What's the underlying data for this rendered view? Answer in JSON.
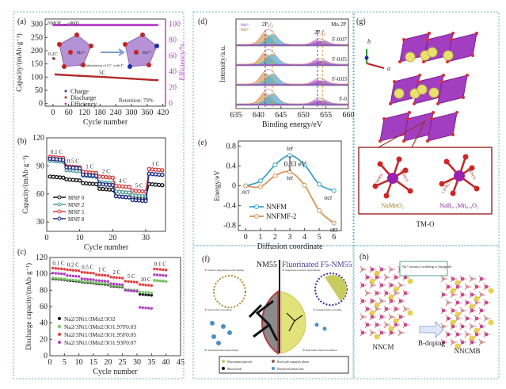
{
  "panel_labels": {
    "a": "(a)",
    "b": "(b)",
    "c": "(c)",
    "d": "(d)",
    "e": "(e)",
    "f": "(f)",
    "g": "(g)",
    "h": "(h)"
  },
  "colors": {
    "border": "#6fb3c4",
    "charge": "#2a3b8f",
    "discharge": "#b22a2a",
    "efficiency": "#b845c8",
    "nnfm": "#3aa3cc",
    "nnfmf": "#d8935a",
    "mn3": "#7a3fc8",
    "mn4": "#d8a050"
  },
  "chart_data": [
    {
      "id": "a",
      "type": "line",
      "xlabel": "Cycle number",
      "ylabel": "Capacity/(mAh·g⁻¹)",
      "y2label": "Efficiency/%",
      "xlim": [
        -30,
        430
      ],
      "ylim": [
        -10,
        320
      ],
      "y2lim": [
        0,
        100
      ],
      "xticks": [
        0,
        60,
        120,
        180,
        240,
        300,
        360,
        420
      ],
      "yticks": [
        0,
        50,
        100,
        150,
        200,
        250,
        300
      ],
      "y2ticks": [
        0,
        20,
        40,
        60,
        80,
        100
      ],
      "series": [
        {
          "name": "Charge",
          "x": [
            1,
            5,
            10,
            100,
            200,
            300,
            400
          ],
          "y": [
            172,
            170,
            111,
            106,
            101,
            95,
            89
          ]
        },
        {
          "name": "Discharge",
          "x": [
            1,
            5,
            10,
            100,
            200,
            300,
            400
          ],
          "y": [
            170,
            168,
            110,
            105,
            100,
            94,
            88
          ]
        },
        {
          "name": "Efficiency",
          "axis": "right",
          "x": [
            1,
            100,
            200,
            300,
            400
          ],
          "y": [
            99,
            99,
            99,
            99,
            99
          ]
        }
      ],
      "annotations": {
        "sample": "NMOF₀.₀₅–9005",
        "rate1": "0.2C",
        "rate2": "5C",
        "retention": "Retention: 79%",
        "substitution": "The substitution of O²⁻ with F⁻",
        "mn": "Mn⁴⁺",
        "o": "O²⁻",
        "f": "F⁻"
      }
    },
    {
      "id": "b",
      "type": "line",
      "xlabel": "Cycle number",
      "ylabel": "Capacity/(mAh·g⁻¹)",
      "xlim": [
        0,
        36
      ],
      "ylim": [
        20,
        120
      ],
      "xticks": [
        0,
        10,
        20,
        30
      ],
      "yticks": [
        30,
        60,
        90,
        120
      ],
      "rates": [
        "0.1 C",
        "0.5 C",
        "1 C",
        "2 C",
        "4 C",
        "5 C",
        "1 C"
      ],
      "cycles_per_rate": 5,
      "series": [
        {
          "name": "MNF 0",
          "color": "#111111",
          "values": [
            78,
            75,
            71,
            65,
            57,
            55,
            70
          ]
        },
        {
          "name": "MNF 2",
          "color": "#4d9a94",
          "values": [
            95,
            85,
            79,
            72,
            62,
            58,
            81
          ]
        },
        {
          "name": "MNF 5",
          "color": "#d23a3a",
          "values": [
            99,
            89,
            83,
            78,
            68,
            63,
            86
          ]
        },
        {
          "name": "MNF 8",
          "color": "#1f2a8a",
          "values": [
            97,
            88,
            80,
            70,
            57,
            53,
            81
          ]
        }
      ],
      "legend": "bottom-left"
    },
    {
      "id": "c",
      "type": "scatter",
      "xlabel": "Cycle number",
      "ylabel": "Discharge capacity/(mAh·g⁻¹)",
      "xlim": [
        0,
        45
      ],
      "ylim": [
        0,
        120
      ],
      "xticks": [
        0,
        5,
        10,
        15,
        20,
        25,
        30,
        35,
        40,
        45
      ],
      "yticks": [
        0,
        20,
        40,
        60,
        80,
        100,
        120
      ],
      "rates": [
        "0.1 C",
        "0.2 C",
        "0.5 C",
        "1 C",
        "2 C",
        "5 C",
        "10 C",
        "0.1 C"
      ],
      "cycles_per_rate": 5,
      "series": [
        {
          "name": "Na2/3Ni1/3Mn2/3O2",
          "color": "#111111",
          "values": [
            94,
            92,
            90,
            88,
            85,
            80,
            75,
            92
          ]
        },
        {
          "name": "Na2/3Ni1/3Mn2/3O1.97F0.03",
          "color": "#7bc66a",
          "values": [
            95,
            93,
            91,
            89,
            86,
            81,
            78,
            92
          ]
        },
        {
          "name": "Na2/3Ni1/3Mn2/3O1.95F0.05",
          "color": "#e04040",
          "values": [
            107,
            105,
            102,
            99,
            96,
            91,
            87,
            106
          ]
        },
        {
          "name": "Na2/3Ni1/3Mn2/3O1.93F0.07",
          "color": "#b040c0",
          "values": [
            101,
            98,
            94,
            92,
            88,
            80,
            59,
            99
          ]
        }
      ],
      "legend": "bottom-left"
    },
    {
      "id": "d",
      "type": "line",
      "title": "Mn 2P",
      "xlabel": "Binding energy/eV",
      "ylabel": "Intensity/a.u.",
      "xlim": [
        635,
        660
      ],
      "xticks": [
        635,
        640,
        645,
        650,
        655,
        660
      ],
      "samples": [
        "F-0",
        "F-0.03",
        "F-0.05",
        "F-0.07"
      ],
      "peaks": {
        "Mn³⁺": [
          641.5,
          653.1
        ],
        "Mn⁴⁺": [
          643.1,
          654.3
        ]
      },
      "peak_labels": [
        "2P₃/₂",
        "2P₁/₂"
      ],
      "legend": [
        "–Mn³⁺",
        "–Mn⁴⁺"
      ]
    },
    {
      "id": "e",
      "type": "line",
      "xlabel": "Diffusion coordinate",
      "ylabel": "Energy/eV",
      "xlim": [
        -0.5,
        6.5
      ],
      "ylim": [
        -0.9,
        0.9
      ],
      "xticks": [
        0,
        1,
        2,
        3,
        4,
        5,
        6
      ],
      "yticks": [
        -0.8,
        -0.4,
        0,
        0.4,
        0.8
      ],
      "x": [
        0,
        1,
        2,
        3,
        4,
        5,
        6
      ],
      "series": [
        {
          "name": "NNFM",
          "values": [
            0,
            0.1,
            0.42,
            0.61,
            0.42,
            0.03,
            -0.1
          ]
        },
        {
          "name": "NNFMF-2",
          "values": [
            0,
            -0.02,
            0.2,
            0.28,
            0.01,
            -0.5,
            -0.75
          ]
        }
      ],
      "annotations": {
        "tet": "tet",
        "oct": "oct",
        "barrier_diff": "0.33 eV"
      },
      "legend": "bottom-left"
    }
  ],
  "panel_f": {
    "left_title": "NM55",
    "right_title": "Fluorinated F5-NM55",
    "left_notes": [
      "② Surface degradation with tearing",
      "① Severe microcracking",
      "③ Transition metal dissolution"
    ],
    "right_notes": [
      "② Suppressed surface degradation",
      "① Limited microcracking",
      "③ Restrained metal dissolution"
    ],
    "legend": [
      "Fluorinated particle",
      "Rock-salt impurity phase",
      "Microcrack",
      "Dissolved metal ions"
    ]
  },
  "panel_g": {
    "axis_b": "b",
    "axis_a": "a",
    "left_compound": "NaMnO₂",
    "right_compound": "NaB₀.₁Mn₀.₉O₂",
    "bond1": "1.969(9)",
    "bond2": "2.438(3)",
    "bond3": "1.918(2)",
    "bond4": "2.409(3)",
    "caption": "TM-O"
  },
  "panel_h": {
    "note": "Na⁺/vacancy ordering is disrupted",
    "left": "NNCM",
    "right": "NNCMB",
    "arrow": "B-doping"
  }
}
